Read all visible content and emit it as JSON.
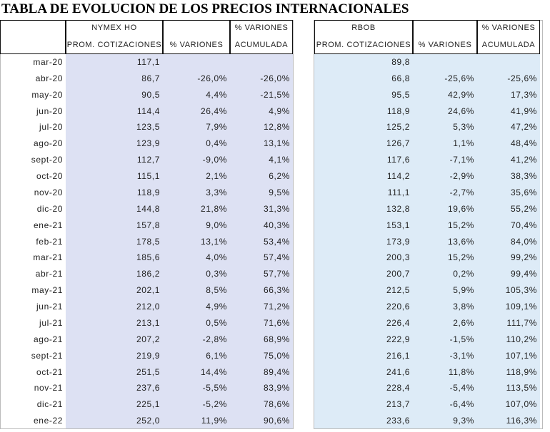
{
  "title": "TABLA DE EVOLUCION DE LOS PRECIOS INTERNACIONALES",
  "columns": [
    {
      "top": "NYMEX HO",
      "bottom": "PROM. COTIZACIONES"
    },
    {
      "bottom": "% VARIONES"
    },
    {
      "top": "% VARIONES",
      "bottom": "ACUMULADA"
    },
    {
      "top": "RBOB",
      "bottom": "PROM. COTIZACIONES"
    },
    {
      "bottom": "% VARIONES"
    },
    {
      "top": "% VARIONES",
      "bottom": "ACUMULADA"
    }
  ],
  "rows": [
    [
      "mar-20",
      "117,1",
      null,
      null,
      "89,8",
      null,
      null
    ],
    [
      "abr-20",
      "86,7",
      "-26,0%",
      "-26,0%",
      "66,8",
      "-25,6%",
      "-25,6%"
    ],
    [
      "may-20",
      "90,5",
      "4,4%",
      "-21,5%",
      "95,5",
      "42,9%",
      "17,3%"
    ],
    [
      "jun-20",
      "114,4",
      "26,4%",
      "4,9%",
      "118,9",
      "24,6%",
      "41,9%"
    ],
    [
      "jul-20",
      "123,5",
      "7,9%",
      "12,8%",
      "125,2",
      "5,3%",
      "47,2%"
    ],
    [
      "ago-20",
      "123,9",
      "0,4%",
      "13,1%",
      "126,7",
      "1,1%",
      "48,4%"
    ],
    [
      "sept-20",
      "112,7",
      "-9,0%",
      "4,1%",
      "117,6",
      "-7,1%",
      "41,2%"
    ],
    [
      "oct-20",
      "115,1",
      "2,1%",
      "6,2%",
      "114,2",
      "-2,9%",
      "38,3%"
    ],
    [
      "nov-20",
      "118,9",
      "3,3%",
      "9,5%",
      "111,1",
      "-2,7%",
      "35,6%"
    ],
    [
      "dic-20",
      "144,8",
      "21,8%",
      "31,3%",
      "132,8",
      "19,6%",
      "55,2%"
    ],
    [
      "ene-21",
      "157,8",
      "9,0%",
      "40,3%",
      "153,1",
      "15,2%",
      "70,4%"
    ],
    [
      "feb-21",
      "178,5",
      "13,1%",
      "53,4%",
      "173,9",
      "13,6%",
      "84,0%"
    ],
    [
      "mar-21",
      "185,6",
      "4,0%",
      "57,4%",
      "200,3",
      "15,2%",
      "99,2%"
    ],
    [
      "abr-21",
      "186,2",
      "0,3%",
      "57,7%",
      "200,7",
      "0,2%",
      "99,4%"
    ],
    [
      "may-21",
      "202,1",
      "8,5%",
      "66,3%",
      "212,5",
      "5,9%",
      "105,3%"
    ],
    [
      "jun-21",
      "212,0",
      "4,9%",
      "71,2%",
      "220,6",
      "3,8%",
      "109,1%"
    ],
    [
      "jul-21",
      "213,1",
      "0,5%",
      "71,6%",
      "226,4",
      "2,6%",
      "111,7%"
    ],
    [
      "ago-21",
      "207,2",
      "-2,8%",
      "68,9%",
      "222,9",
      "-1,5%",
      "110,2%"
    ],
    [
      "sept-21",
      "219,9",
      "6,1%",
      "75,0%",
      "216,1",
      "-3,1%",
      "107,1%"
    ],
    [
      "oct-21",
      "251,5",
      "14,4%",
      "89,4%",
      "241,6",
      "11,8%",
      "118,9%"
    ],
    [
      "nov-21",
      "237,6",
      "-5,5%",
      "83,9%",
      "228,4",
      "-5,4%",
      "113,5%"
    ],
    [
      "dic-21",
      "225,1",
      "-5,2%",
      "78,6%",
      "213,7",
      "-6,4%",
      "107,0%"
    ],
    [
      "ene-22",
      "252,0",
      "11,9%",
      "90,6%",
      "233,6",
      "9,3%",
      "116,3%"
    ]
  ]
}
